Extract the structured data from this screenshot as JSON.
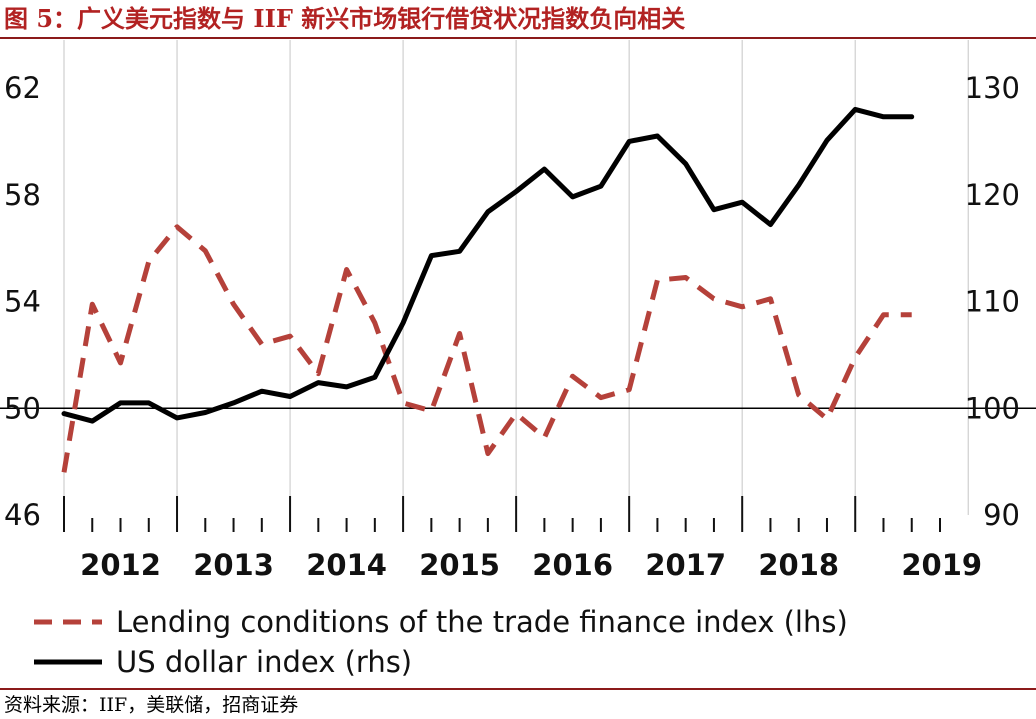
{
  "header": {
    "title": "图 5：广义美元指数与 IIF 新兴市场银行借贷状况指数负向相关"
  },
  "footer": {
    "source": "资料来源：IIF，美联储，招商证券"
  },
  "colors": {
    "title": "#b22222",
    "lending_series": "#b5413a",
    "usd_series": "#000000",
    "rule": "#8b1a1a"
  },
  "chart_data": {
    "type": "line",
    "title": "",
    "xlabel": "",
    "ylabel_left": "",
    "ylabel_right": "",
    "x_tick_labels": [
      "2012",
      "2013",
      "2014",
      "2015",
      "2016",
      "2017",
      "2018",
      "2019"
    ],
    "left_axis": {
      "ticks": [
        "62",
        "58",
        "54",
        "50",
        "46"
      ],
      "ylim": [
        46,
        62
      ]
    },
    "right_axis": {
      "ticks": [
        "130",
        "120",
        "110",
        "100",
        "90"
      ],
      "ylim": [
        90,
        130
      ]
    },
    "reference_line": 50,
    "x_range": [
      2011.5,
      2019.25
    ],
    "grid": "vertical",
    "legend_position": "bottom",
    "series": [
      {
        "name": "Lending conditions of the trade finance index (lhs)",
        "axis": "left",
        "style": "dashed",
        "x": [
          2011.5,
          2011.75,
          2012.0,
          2012.25,
          2012.5,
          2012.75,
          2013.0,
          2013.25,
          2013.5,
          2013.75,
          2014.0,
          2014.25,
          2014.5,
          2014.75,
          2015.0,
          2015.25,
          2015.5,
          2015.75,
          2016.0,
          2016.25,
          2016.5,
          2016.75,
          2017.0,
          2017.25,
          2017.5,
          2017.75,
          2018.0,
          2018.25,
          2018.5,
          2018.75,
          2019.0
        ],
        "values": [
          47.6,
          53.9,
          51.7,
          55.5,
          56.8,
          55.9,
          53.9,
          52.4,
          52.7,
          51.3,
          55.2,
          53.2,
          50.2,
          49.9,
          52.8,
          48.3,
          49.8,
          48.9,
          51.2,
          50.4,
          50.7,
          54.8,
          54.9,
          54.1,
          53.8,
          54.1,
          50.5,
          49.6,
          51.9,
          53.5,
          53.5
        ]
      },
      {
        "name": "US dollar index (rhs)",
        "axis": "right",
        "style": "solid",
        "x": [
          2011.5,
          2011.75,
          2012.0,
          2012.25,
          2012.5,
          2012.75,
          2013.0,
          2013.25,
          2013.5,
          2013.75,
          2014.0,
          2014.25,
          2014.5,
          2014.75,
          2015.0,
          2015.25,
          2015.5,
          2015.75,
          2016.0,
          2016.25,
          2016.5,
          2016.75,
          2017.0,
          2017.25,
          2017.5,
          2017.75,
          2018.0,
          2018.25,
          2018.5,
          2018.75,
          2019.0
        ],
        "values": [
          99.5,
          98.8,
          100.5,
          100.5,
          99.1,
          99.6,
          100.5,
          101.6,
          101.1,
          102.4,
          102.0,
          102.9,
          108.0,
          114.3,
          114.7,
          118.4,
          120.3,
          122.4,
          119.8,
          120.8,
          125.0,
          125.5,
          122.9,
          118.6,
          119.3,
          117.2,
          120.9,
          125.1,
          128.0,
          127.3,
          127.3
        ]
      }
    ]
  }
}
